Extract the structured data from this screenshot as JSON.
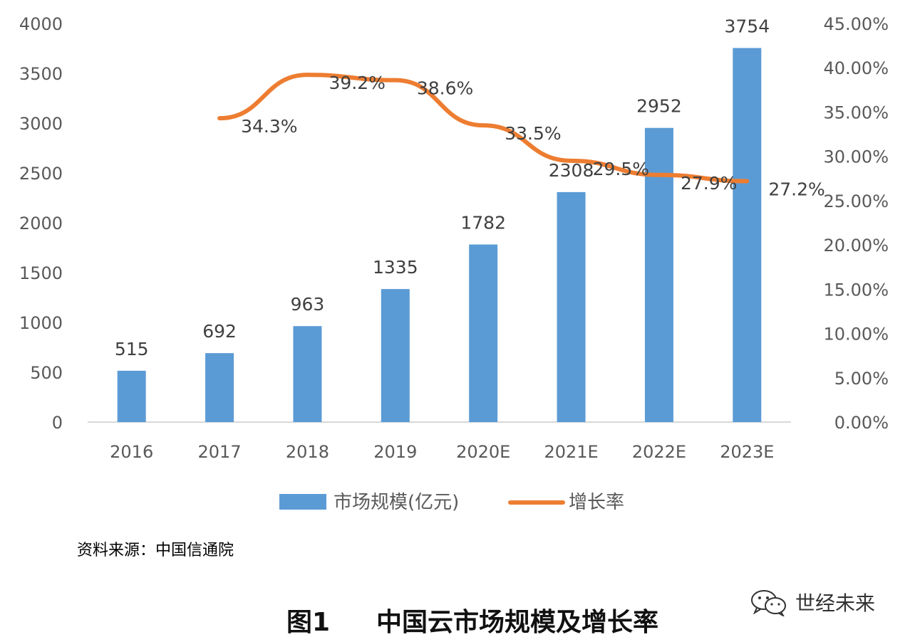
{
  "chart_data": {
    "type": "bar",
    "categories": [
      "2016",
      "2017",
      "2018",
      "2019",
      "2020E",
      "2021E",
      "2022E",
      "2023E"
    ],
    "series": [
      {
        "name": "市场规模(亿元)",
        "type": "bar",
        "axis": "left",
        "color": "#5b9bd5",
        "values": [
          515,
          692,
          963,
          1335,
          1782,
          2308,
          2952,
          3754
        ],
        "labels": [
          "515",
          "692",
          "963",
          "1335",
          "1782",
          "2308",
          "2952",
          "3754"
        ]
      },
      {
        "name": "增长率",
        "type": "line",
        "axis": "right",
        "color": "#ed7d31",
        "values": [
          null,
          34.3,
          39.2,
          38.6,
          33.5,
          29.5,
          27.9,
          27.2
        ],
        "labels": [
          "",
          "34.3%",
          "39.2%",
          "38.6%",
          "33.5%",
          "29.5%",
          "27.9%",
          "27.2%"
        ]
      }
    ],
    "y_left": {
      "min": 0,
      "max": 4000,
      "ticks": [
        "0",
        "500",
        "1000",
        "1500",
        "2000",
        "2500",
        "3000",
        "3500",
        "4000"
      ]
    },
    "y_right": {
      "min": 0,
      "max": 45,
      "ticks": [
        "0.00%",
        "5.00%",
        "10.00%",
        "15.00%",
        "20.00%",
        "25.00%",
        "30.00%",
        "35.00%",
        "40.00%",
        "45.00%"
      ]
    },
    "legend": [
      "市场规模(亿元)",
      "增长率"
    ],
    "legend_position": "bottom",
    "grid": false
  },
  "source": "资料来源：中国信通院",
  "figure": {
    "number": "图1",
    "title": "中国云市场规模及增长率"
  },
  "watermark": {
    "text": "世经未来",
    "icon": "wechat-icon"
  }
}
